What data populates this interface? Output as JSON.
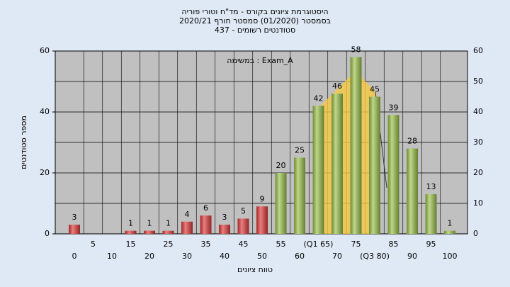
{
  "chart_data": {
    "type": "bar",
    "title_lines": [
      "היסטוגרמת ציונים בקורס - מד\"ח וטורי פוריה",
      "בסמסטר  (01/2020)  סמסטר חורף  2020/21",
      "סטודנטים רשומים - 437"
    ],
    "annotation": "במשימה : Exam_A",
    "x_label": "טווח ציונים",
    "y_label": "מספר סטודנטים",
    "categories": [
      "0",
      "5",
      "10",
      "15",
      "20",
      "25",
      "30",
      "35",
      "40",
      "45",
      "50",
      "55",
      "60",
      "(Q1 65)",
      "70",
      "75",
      "(Q3 80)",
      "85",
      "90",
      "95",
      "100"
    ],
    "values": [
      3,
      0,
      0,
      1,
      1,
      1,
      4,
      6,
      3,
      5,
      9,
      20,
      25,
      42,
      46,
      58,
      45,
      39,
      28,
      13,
      1
    ],
    "colors": [
      "#e03a3a",
      "#e03a3a",
      "#e03a3a",
      "#e03a3a",
      "#e03a3a",
      "#e03a3a",
      "#e03a3a",
      "#e03a3a",
      "#e03a3a",
      "#e03a3a",
      "#e03a3a",
      "#9cc24a",
      "#9cc24a",
      "#9cc24a",
      "#9cc24a",
      "#9cc24a",
      "#9cc24a",
      "#9cc24a",
      "#9cc24a",
      "#9cc24a",
      "#9cc24a"
    ],
    "ylim": [
      0,
      60
    ],
    "yticks": [
      0,
      20,
      40,
      60
    ],
    "y2lim": [
      0,
      60
    ],
    "y2ticks": [
      0,
      10,
      20,
      30,
      40,
      50,
      60
    ],
    "grid": true
  }
}
